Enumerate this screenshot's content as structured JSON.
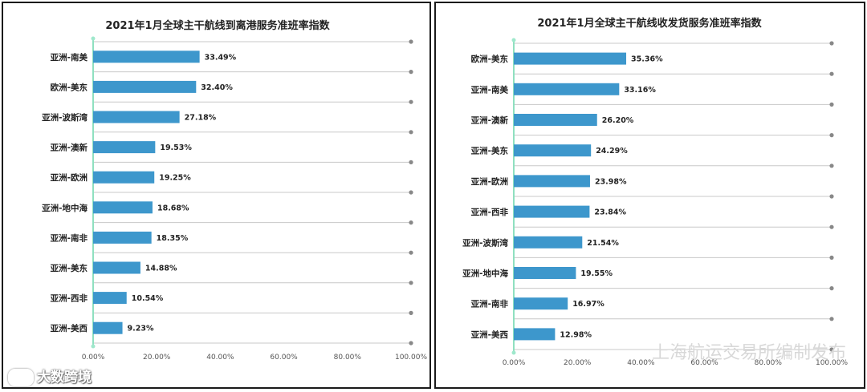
{
  "chart_data": [
    {
      "type": "bar",
      "orientation": "horizontal",
      "title": "2021年1月全球主干航线到离港服务准班率指数",
      "categories": [
        "亚洲-南美",
        "欧洲-美东",
        "亚洲-波斯湾",
        "亚洲-澳新",
        "亚洲-欧洲",
        "亚洲-地中海",
        "亚洲-南非",
        "亚洲-美东",
        "亚洲-西非",
        "亚洲-美西"
      ],
      "values": [
        33.49,
        32.4,
        27.18,
        19.53,
        19.25,
        18.68,
        18.35,
        14.88,
        10.54,
        9.23
      ],
      "value_labels": [
        "33.49%",
        "32.40%",
        "27.18%",
        "19.53%",
        "19.25%",
        "18.68%",
        "18.35%",
        "14.88%",
        "10.54%",
        "9.23%"
      ],
      "xlim": [
        0,
        100
      ],
      "x_ticks": [
        "0.00%",
        "20.00%",
        "40.00%",
        "60.00%",
        "80.00%",
        "100.00%"
      ],
      "grid": true,
      "color": "#3d97cc"
    },
    {
      "type": "bar",
      "orientation": "horizontal",
      "title": "2021年1月全球主干航线收发货服务准班率指数",
      "categories": [
        "欧洲-美东",
        "亚洲-南美",
        "亚洲-澳新",
        "亚洲-美东",
        "亚洲-欧洲",
        "亚洲-西非",
        "亚洲-波斯湾",
        "亚洲-地中海",
        "亚洲-南非",
        "亚洲-美西"
      ],
      "values": [
        35.36,
        33.16,
        26.2,
        24.29,
        23.98,
        23.84,
        21.54,
        19.55,
        16.97,
        12.98
      ],
      "value_labels": [
        "35.36%",
        "33.16%",
        "26.20%",
        "24.29%",
        "23.98%",
        "23.84%",
        "21.54%",
        "19.55%",
        "16.97%",
        "12.98%"
      ],
      "xlim": [
        0,
        100
      ],
      "x_ticks": [
        "0.00%",
        "20.00%",
        "40.00%",
        "60.00%",
        "80.00%",
        "100.00%"
      ],
      "grid": true,
      "color": "#3d97cc"
    }
  ],
  "watermarks": {
    "right": "上海航运交易所编制发布",
    "left": "大数跨境"
  }
}
